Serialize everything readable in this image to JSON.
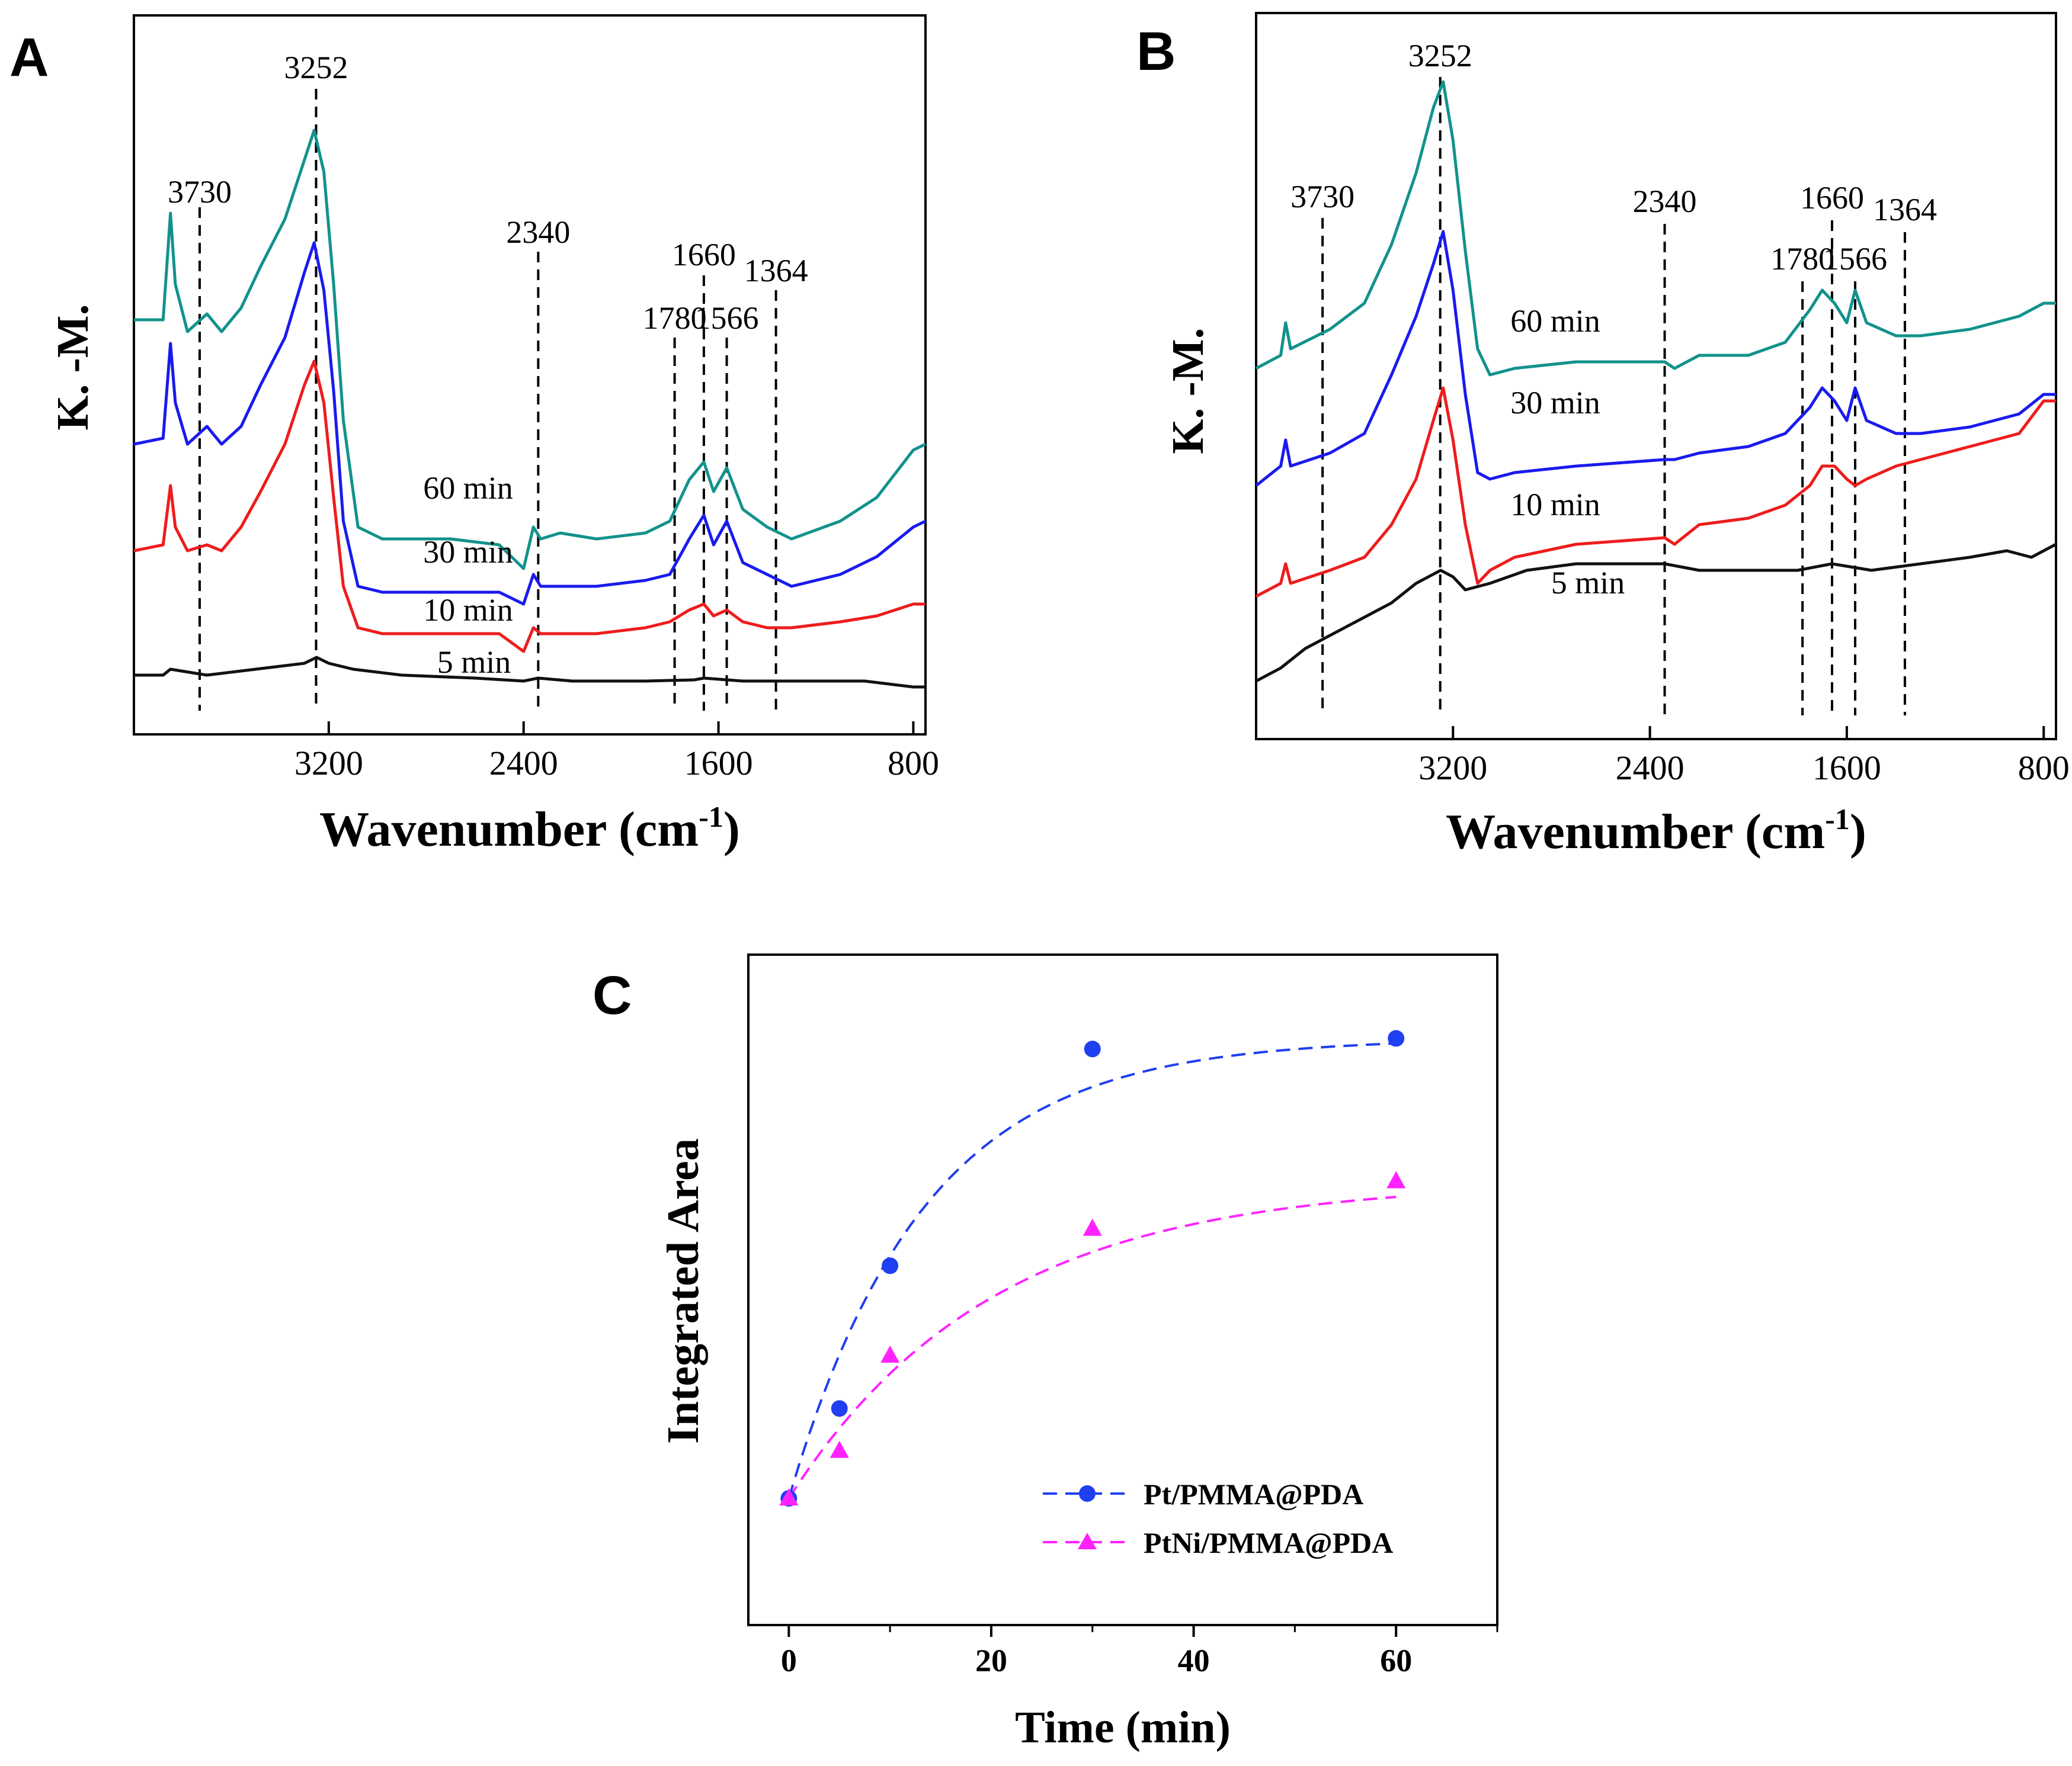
{
  "colors": {
    "c60": "#12928c",
    "c30": "#1a1aee",
    "c10": "#ee1c1c",
    "c5": "#111111",
    "pt": "#1f3ff0",
    "ptni": "#ff22ff"
  },
  "chart_data": [
    {
      "panel": "A",
      "type": "line",
      "xlabel": "Wavenumber (cm",
      "xlabel_sup": "-1",
      "xlabel_close": ")",
      "ylabel": "K. -M.",
      "xlim": [
        4000,
        750
      ],
      "x_ticks": [
        {
          "value": 3200,
          "label": "3200"
        },
        {
          "value": 2400,
          "label": "2400"
        },
        {
          "value": 1600,
          "label": "1600"
        },
        {
          "value": 800,
          "label": "800"
        }
      ],
      "peaks": [
        {
          "value": 3730,
          "label": "3730"
        },
        {
          "value": 3252,
          "label": "3252"
        },
        {
          "value": 2340,
          "label": "2340"
        },
        {
          "value": 1780,
          "label": "1780"
        },
        {
          "value": 1660,
          "label": "1660"
        },
        {
          "value": 1566,
          "label": "1566"
        },
        {
          "value": 1364,
          "label": "1364"
        }
      ],
      "series": [
        {
          "name": "60 min",
          "label": "60 min",
          "color_key": "c60",
          "x": [
            4000,
            3880,
            3850,
            3830,
            3780,
            3700,
            3640,
            3560,
            3480,
            3380,
            3300,
            3260,
            3220,
            3180,
            3140,
            3080,
            2980,
            2700,
            2500,
            2400,
            2360,
            2330,
            2250,
            2100,
            1900,
            1800,
            1720,
            1660,
            1620,
            1566,
            1500,
            1400,
            1300,
            1100,
            950,
            800,
            750
          ],
          "y": [
            0.62,
            0.62,
            0.8,
            0.68,
            0.6,
            0.63,
            0.6,
            0.64,
            0.71,
            0.79,
            0.89,
            0.94,
            0.87,
            0.68,
            0.45,
            0.27,
            0.25,
            0.25,
            0.24,
            0.2,
            0.27,
            0.25,
            0.26,
            0.25,
            0.26,
            0.28,
            0.35,
            0.38,
            0.33,
            0.37,
            0.3,
            0.27,
            0.25,
            0.28,
            0.32,
            0.4,
            0.41
          ]
        },
        {
          "name": "30 min",
          "label": "30 min",
          "color_key": "c30",
          "x": [
            4000,
            3880,
            3850,
            3830,
            3780,
            3700,
            3640,
            3560,
            3480,
            3380,
            3300,
            3260,
            3220,
            3180,
            3140,
            3080,
            2980,
            2700,
            2500,
            2400,
            2360,
            2330,
            2250,
            2100,
            1900,
            1800,
            1720,
            1660,
            1620,
            1566,
            1500,
            1400,
            1300,
            1100,
            950,
            800,
            750
          ],
          "y": [
            0.41,
            0.42,
            0.58,
            0.48,
            0.41,
            0.44,
            0.41,
            0.44,
            0.51,
            0.59,
            0.7,
            0.75,
            0.67,
            0.5,
            0.28,
            0.17,
            0.16,
            0.16,
            0.16,
            0.14,
            0.19,
            0.17,
            0.17,
            0.17,
            0.18,
            0.19,
            0.25,
            0.29,
            0.24,
            0.28,
            0.21,
            0.19,
            0.17,
            0.19,
            0.22,
            0.27,
            0.28
          ]
        },
        {
          "name": "10 min",
          "label": "10 min",
          "color_key": "c10",
          "x": [
            4000,
            3880,
            3850,
            3830,
            3780,
            3700,
            3640,
            3560,
            3480,
            3380,
            3300,
            3260,
            3220,
            3180,
            3140,
            3080,
            2980,
            2700,
            2500,
            2400,
            2360,
            2330,
            2250,
            2100,
            1900,
            1800,
            1720,
            1660,
            1620,
            1566,
            1500,
            1400,
            1300,
            1100,
            950,
            800,
            750
          ],
          "y": [
            0.23,
            0.24,
            0.34,
            0.27,
            0.23,
            0.24,
            0.23,
            0.27,
            0.33,
            0.41,
            0.51,
            0.55,
            0.48,
            0.32,
            0.17,
            0.1,
            0.09,
            0.09,
            0.09,
            0.06,
            0.1,
            0.09,
            0.09,
            0.09,
            0.1,
            0.11,
            0.13,
            0.14,
            0.12,
            0.13,
            0.11,
            0.1,
            0.1,
            0.11,
            0.12,
            0.14,
            0.14
          ]
        },
        {
          "name": "5 min",
          "label": "5 min",
          "color_key": "c5",
          "x": [
            4000,
            3880,
            3850,
            3700,
            3500,
            3300,
            3250,
            3200,
            3100,
            2900,
            2600,
            2400,
            2340,
            2200,
            1900,
            1700,
            1660,
            1500,
            1200,
            1000,
            800,
            750
          ],
          "y": [
            0.02,
            0.02,
            0.03,
            0.02,
            0.03,
            0.04,
            0.05,
            0.04,
            0.03,
            0.02,
            0.015,
            0.01,
            0.015,
            0.01,
            0.01,
            0.012,
            0.015,
            0.01,
            0.01,
            0.01,
            0.0,
            0.0
          ]
        }
      ]
    },
    {
      "panel": "B",
      "type": "line",
      "xlabel": "Wavenumber (cm",
      "xlabel_sup": "-1",
      "xlabel_close": ")",
      "ylabel": "K. -M.",
      "xlim": [
        4000,
        750
      ],
      "x_ticks": [
        {
          "value": 3200,
          "label": "3200"
        },
        {
          "value": 2400,
          "label": "2400"
        },
        {
          "value": 1600,
          "label": "1600"
        },
        {
          "value": 800,
          "label": "800"
        }
      ],
      "peaks": [
        {
          "value": 3730,
          "label": "3730"
        },
        {
          "value": 3252,
          "label": "3252"
        },
        {
          "value": 2340,
          "label": "2340"
        },
        {
          "value": 1780,
          "label": "1780"
        },
        {
          "value": 1660,
          "label": "1660"
        },
        {
          "value": 1566,
          "label": "1566"
        },
        {
          "value": 1364,
          "label": "1364"
        }
      ],
      "series": [
        {
          "name": "60 min",
          "label": "60 min",
          "color_key": "c60",
          "x": [
            4000,
            3900,
            3880,
            3860,
            3700,
            3560,
            3450,
            3350,
            3280,
            3240,
            3200,
            3150,
            3100,
            3050,
            2950,
            2700,
            2340,
            2300,
            2200,
            2000,
            1850,
            1750,
            1700,
            1650,
            1600,
            1566,
            1520,
            1400,
            1300,
            1100,
            900,
            800,
            750
          ],
          "y": [
            0.48,
            0.5,
            0.55,
            0.51,
            0.54,
            0.58,
            0.67,
            0.78,
            0.88,
            0.92,
            0.83,
            0.66,
            0.51,
            0.47,
            0.48,
            0.49,
            0.49,
            0.48,
            0.5,
            0.5,
            0.52,
            0.57,
            0.6,
            0.58,
            0.55,
            0.6,
            0.55,
            0.53,
            0.53,
            0.54,
            0.56,
            0.58,
            0.58
          ]
        },
        {
          "name": "30 min",
          "label": "30 min",
          "color_key": "c30",
          "x": [
            4000,
            3900,
            3880,
            3860,
            3700,
            3560,
            3450,
            3350,
            3280,
            3240,
            3200,
            3150,
            3100,
            3050,
            2950,
            2700,
            2340,
            2300,
            2200,
            2000,
            1850,
            1750,
            1700,
            1650,
            1600,
            1566,
            1520,
            1400,
            1300,
            1100,
            900,
            800,
            750
          ],
          "y": [
            0.3,
            0.33,
            0.37,
            0.33,
            0.35,
            0.38,
            0.47,
            0.56,
            0.64,
            0.69,
            0.6,
            0.44,
            0.32,
            0.31,
            0.32,
            0.33,
            0.34,
            0.34,
            0.35,
            0.36,
            0.38,
            0.42,
            0.45,
            0.43,
            0.4,
            0.45,
            0.4,
            0.38,
            0.38,
            0.39,
            0.41,
            0.44,
            0.44
          ]
        },
        {
          "name": "10 min",
          "label": "10 min",
          "color_key": "c10",
          "x": [
            4000,
            3900,
            3880,
            3860,
            3700,
            3560,
            3450,
            3350,
            3280,
            3240,
            3200,
            3150,
            3100,
            3050,
            2950,
            2700,
            2340,
            2300,
            2200,
            2000,
            1850,
            1750,
            1700,
            1650,
            1600,
            1566,
            1520,
            1400,
            1300,
            1100,
            900,
            800,
            750
          ],
          "y": [
            0.13,
            0.15,
            0.18,
            0.15,
            0.17,
            0.19,
            0.24,
            0.31,
            0.4,
            0.45,
            0.37,
            0.24,
            0.15,
            0.17,
            0.19,
            0.21,
            0.22,
            0.21,
            0.24,
            0.25,
            0.27,
            0.3,
            0.33,
            0.33,
            0.31,
            0.3,
            0.31,
            0.33,
            0.34,
            0.36,
            0.38,
            0.43,
            0.43
          ]
        },
        {
          "name": "5 min",
          "label": "5 min",
          "color_key": "c5",
          "x": [
            4000,
            3900,
            3800,
            3600,
            3450,
            3350,
            3250,
            3200,
            3150,
            3050,
            2900,
            2700,
            2500,
            2340,
            2200,
            2000,
            1800,
            1660,
            1500,
            1300,
            1100,
            950,
            850,
            800,
            750
          ],
          "y": [
            0.0,
            0.02,
            0.05,
            0.09,
            0.12,
            0.15,
            0.17,
            0.16,
            0.14,
            0.15,
            0.17,
            0.18,
            0.18,
            0.18,
            0.17,
            0.17,
            0.17,
            0.18,
            0.17,
            0.18,
            0.19,
            0.2,
            0.19,
            0.2,
            0.21
          ]
        }
      ]
    },
    {
      "panel": "C",
      "type": "scatter",
      "xlabel": "Time (min)",
      "ylabel": "Integrated Area",
      "xlim": [
        -4,
        70
      ],
      "ylim": [
        0,
        1.1
      ],
      "x_ticks": [
        {
          "value": 0,
          "label": "0"
        },
        {
          "value": 20,
          "label": "20"
        },
        {
          "value": 40,
          "label": "40"
        },
        {
          "value": 60,
          "label": "60"
        }
      ],
      "series": [
        {
          "name": "Pt/PMMA@PDA",
          "label": "Pt/PMMA@PDA",
          "marker": "circle",
          "color_key": "pt",
          "x": [
            0,
            5,
            10,
            30,
            60
          ],
          "y": [
            0.15,
            0.32,
            0.59,
            1.0,
            1.02
          ],
          "fit_k": 0.075
        },
        {
          "name": "PtNi/PMMA@PDA",
          "label": "PtNi/PMMA@PDA",
          "marker": "triangle",
          "color_key": "ptni",
          "x": [
            0,
            5,
            10,
            30,
            60
          ],
          "y": [
            0.15,
            0.24,
            0.42,
            0.66,
            0.75
          ],
          "fit_k": 0.05
        }
      ]
    }
  ],
  "panel_labels": {
    "A": "A",
    "B": "B",
    "C": "C"
  }
}
